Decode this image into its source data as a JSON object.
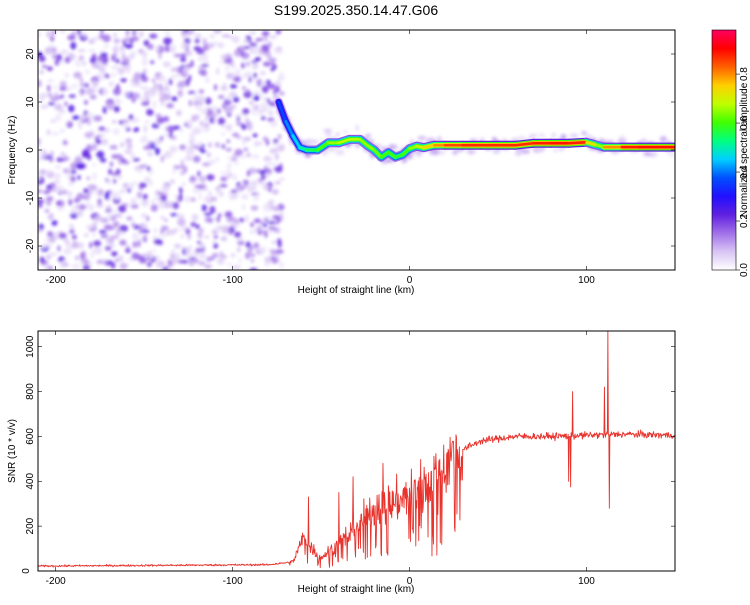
{
  "page_title": "S199.2025.350.14.47.G06",
  "chart_data": [
    {
      "type": "heatmap",
      "title": "S199.2025.350.14.47.G06",
      "xlabel": "Height of straight line (km)",
      "ylabel": "Frequency (Hz)",
      "xlim": [
        -210,
        150
      ],
      "ylim": [
        -25,
        25
      ],
      "xticks": [
        -200,
        -100,
        0,
        100
      ],
      "yticks": [
        -20,
        -10,
        0,
        10,
        20
      ],
      "colorbar": {
        "label": "Normalized spectral amplitude",
        "range": [
          0,
          0.98
        ],
        "ticks": [
          "0.0",
          "0.2",
          "0.4",
          "0.6",
          "0.8"
        ],
        "colors": [
          "#ffffff",
          "#d8c4f4",
          "#a070e8",
          "#6020e0",
          "#2010ff",
          "#0050ff",
          "#00d0ff",
          "#00ff80",
          "#40ff00",
          "#c0ff00",
          "#ffd000",
          "#ff6000",
          "#ff0000",
          "#ff0060"
        ]
      },
      "noise_region_x": [
        -210,
        -72
      ],
      "signal_track": {
        "x": [
          -74,
          -70,
          -66,
          -62,
          -58,
          -52,
          -46,
          -40,
          -34,
          -28,
          -24,
          -20,
          -16,
          -12,
          -8,
          -4,
          0,
          4,
          8,
          14,
          20,
          30,
          40,
          50,
          60,
          70,
          80,
          90,
          100,
          106,
          110,
          120,
          130,
          140,
          150
        ],
        "y_hz": [
          10,
          6,
          3,
          0.5,
          0,
          0,
          1.5,
          1.5,
          2.2,
          2.2,
          1.0,
          0,
          -1.5,
          -0.5,
          -1.5,
          -1.0,
          0.3,
          0.8,
          0.5,
          1.0,
          1.0,
          1.0,
          1.0,
          1.0,
          1.0,
          1.4,
          1.4,
          1.4,
          1.6,
          1.0,
          0.6,
          0.6,
          0.6,
          0.6,
          0.6
        ],
        "amplitude": [
          0.35,
          0.4,
          0.45,
          0.5,
          0.55,
          0.6,
          0.65,
          0.7,
          0.7,
          0.7,
          0.65,
          0.7,
          0.6,
          0.65,
          0.6,
          0.6,
          0.65,
          0.7,
          0.75,
          0.8,
          0.85,
          0.9,
          0.9,
          0.9,
          0.9,
          0.9,
          0.92,
          0.92,
          0.9,
          0.6,
          0.75,
          0.9,
          0.92,
          0.92,
          0.92
        ]
      }
    },
    {
      "type": "line",
      "xlabel": "Height of straight line (km)",
      "ylabel": "SNR (10 * v/v)",
      "xlim": [
        -210,
        150
      ],
      "ylim": [
        0,
        1070
      ],
      "xticks": [
        -200,
        -100,
        0,
        100
      ],
      "yticks": [
        0,
        200,
        400,
        600,
        800,
        1000
      ],
      "color": "#e8332d",
      "series": [
        {
          "name": "SNR",
          "trend_x": [
            -210,
            -80,
            -66,
            -60,
            -55,
            -50,
            -40,
            -30,
            -20,
            -10,
            0,
            10,
            20,
            30,
            40,
            60,
            80,
            100,
            120,
            150
          ],
          "trend_y": [
            22,
            28,
            40,
            150,
            100,
            60,
            120,
            200,
            280,
            300,
            340,
            400,
            480,
            540,
            580,
            600,
            600,
            605,
            610,
            605
          ],
          "spikes": [
            {
              "x": -57,
              "y": 330
            },
            {
              "x": -40,
              "y": 350
            },
            {
              "x": -32,
              "y": 420
            },
            {
              "x": -15,
              "y": 480
            },
            {
              "x": 90,
              "y": 400
            },
            {
              "x": 92,
              "y": 800
            },
            {
              "x": 110,
              "y": 820
            },
            {
              "x": 112,
              "y": 1070
            },
            {
              "x": 113,
              "y": 280
            },
            {
              "x": 91,
              "y": 375
            }
          ]
        }
      ]
    }
  ]
}
